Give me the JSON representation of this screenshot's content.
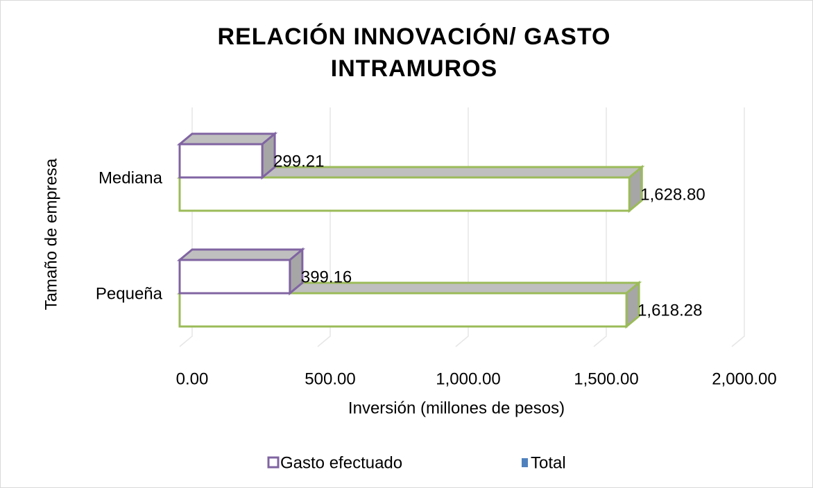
{
  "chart_data": {
    "type": "bar3d_horizontal",
    "title": "RELACIÓN INNOVACIÓN/ GASTO INTRAMUROS",
    "x_label": "Inversión (millones de pesos)",
    "y_label": "Tamaño de empresa",
    "categories": [
      "Mediana",
      "Pequeña"
    ],
    "series": [
      {
        "name": "Gasto efectuado",
        "color": "#8064a2",
        "values": [
          299.21,
          399.16
        ]
      },
      {
        "name": "Total",
        "color": "#9bbb59",
        "values": [
          1628.8,
          1618.28
        ],
        "value_labels": [
          "1,628.80",
          "1,618.28"
        ]
      }
    ],
    "xlim": [
      0,
      2000
    ],
    "xticks": [
      {
        "value": 0,
        "label": "0.00"
      },
      {
        "value": 500,
        "label": "500.00"
      },
      {
        "value": 1000,
        "label": "1,000.00"
      },
      {
        "value": 1500,
        "label": "1,500.00"
      },
      {
        "value": 2000,
        "label": "2,000.00"
      }
    ],
    "grid": true,
    "legend": "bottom"
  }
}
